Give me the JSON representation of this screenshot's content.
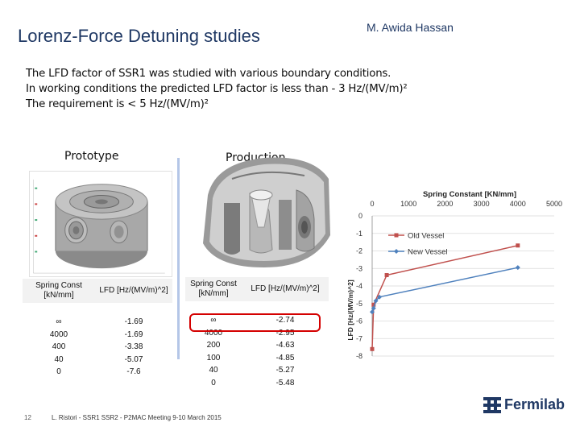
{
  "slide": {
    "title": "Lorenz-Force Detuning studies",
    "author": "M. Awida Hassan",
    "body": [
      "The LFD factor of SSR1 was studied with various boundary conditions.",
      "In working conditions the predicted LFD factor is less than - 3 Hz/(MV/m)²",
      "The requirement is < 5 Hz/(MV/m)²"
    ],
    "prototype_label": "Prototype",
    "production_label": "Production",
    "page_number": "12",
    "footer": "L. Ristori - SSR1 SSR2 - P2MAC Meeting 9-10 March 2015",
    "logo_text": "Fermilab"
  },
  "prototype_table": {
    "headers": [
      "Spring Const [kN/mm]",
      "LFD [Hz/(MV/m)^2]"
    ],
    "rows": [
      [
        "∞",
        "-1.69"
      ],
      [
        "4000",
        "-1.69"
      ],
      [
        "400",
        "-3.38"
      ],
      [
        "40",
        "-5.07"
      ],
      [
        "0",
        "-7.6"
      ]
    ]
  },
  "production_table": {
    "headers": [
      "Spring Const [kN/mm]",
      "LFD [Hz/(MV/m)^2]"
    ],
    "rows": [
      [
        "∞",
        "-2.74"
      ],
      [
        "4000",
        "-2.95"
      ],
      [
        "200",
        "-4.63"
      ],
      [
        "100",
        "-4.85"
      ],
      [
        "40",
        "-5.27"
      ],
      [
        "0",
        "-5.48"
      ]
    ]
  },
  "chart_data": {
    "type": "line",
    "title": "Spring Constant [KN/mm]",
    "xlabel": "",
    "ylabel": "LFD  [Hz/(MV/m)^2]",
    "xlim": [
      0,
      5000
    ],
    "ylim": [
      -8,
      0
    ],
    "x_ticks": [
      "0",
      "1000",
      "2000",
      "3000",
      "4000",
      "5000"
    ],
    "y_ticks": [
      "0",
      "-1",
      "-2",
      "-3",
      "-4",
      "-5",
      "-6",
      "-7",
      "-8"
    ],
    "grid": true,
    "legend_position": "right",
    "series": [
      {
        "name": "Old Vessel",
        "color": "#c0504d",
        "marker": "square",
        "x": [
          0,
          40,
          400,
          4000
        ],
        "y": [
          -7.6,
          -5.07,
          -3.38,
          -1.69
        ]
      },
      {
        "name": "New Vessel",
        "color": "#4f81bd",
        "marker": "diamond",
        "x": [
          0,
          40,
          100,
          200,
          4000
        ],
        "y": [
          -5.48,
          -5.27,
          -4.85,
          -4.63,
          -2.95
        ]
      }
    ]
  }
}
